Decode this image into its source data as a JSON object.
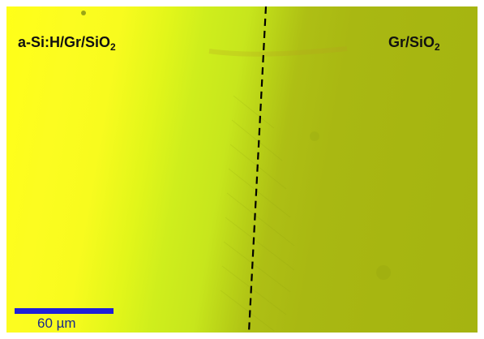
{
  "labels": {
    "left_main": "a-Si:H/Gr/SiO",
    "left_sub": "2",
    "right_main": "Gr/SiO",
    "right_sub": "2"
  },
  "scale_bar": {
    "text": "60 µm"
  },
  "colors": {
    "bright_region": "#ffff18",
    "dark_region": "#a7b611",
    "boundary_line": "#000000",
    "scale_bar": "#1f1fd8"
  }
}
